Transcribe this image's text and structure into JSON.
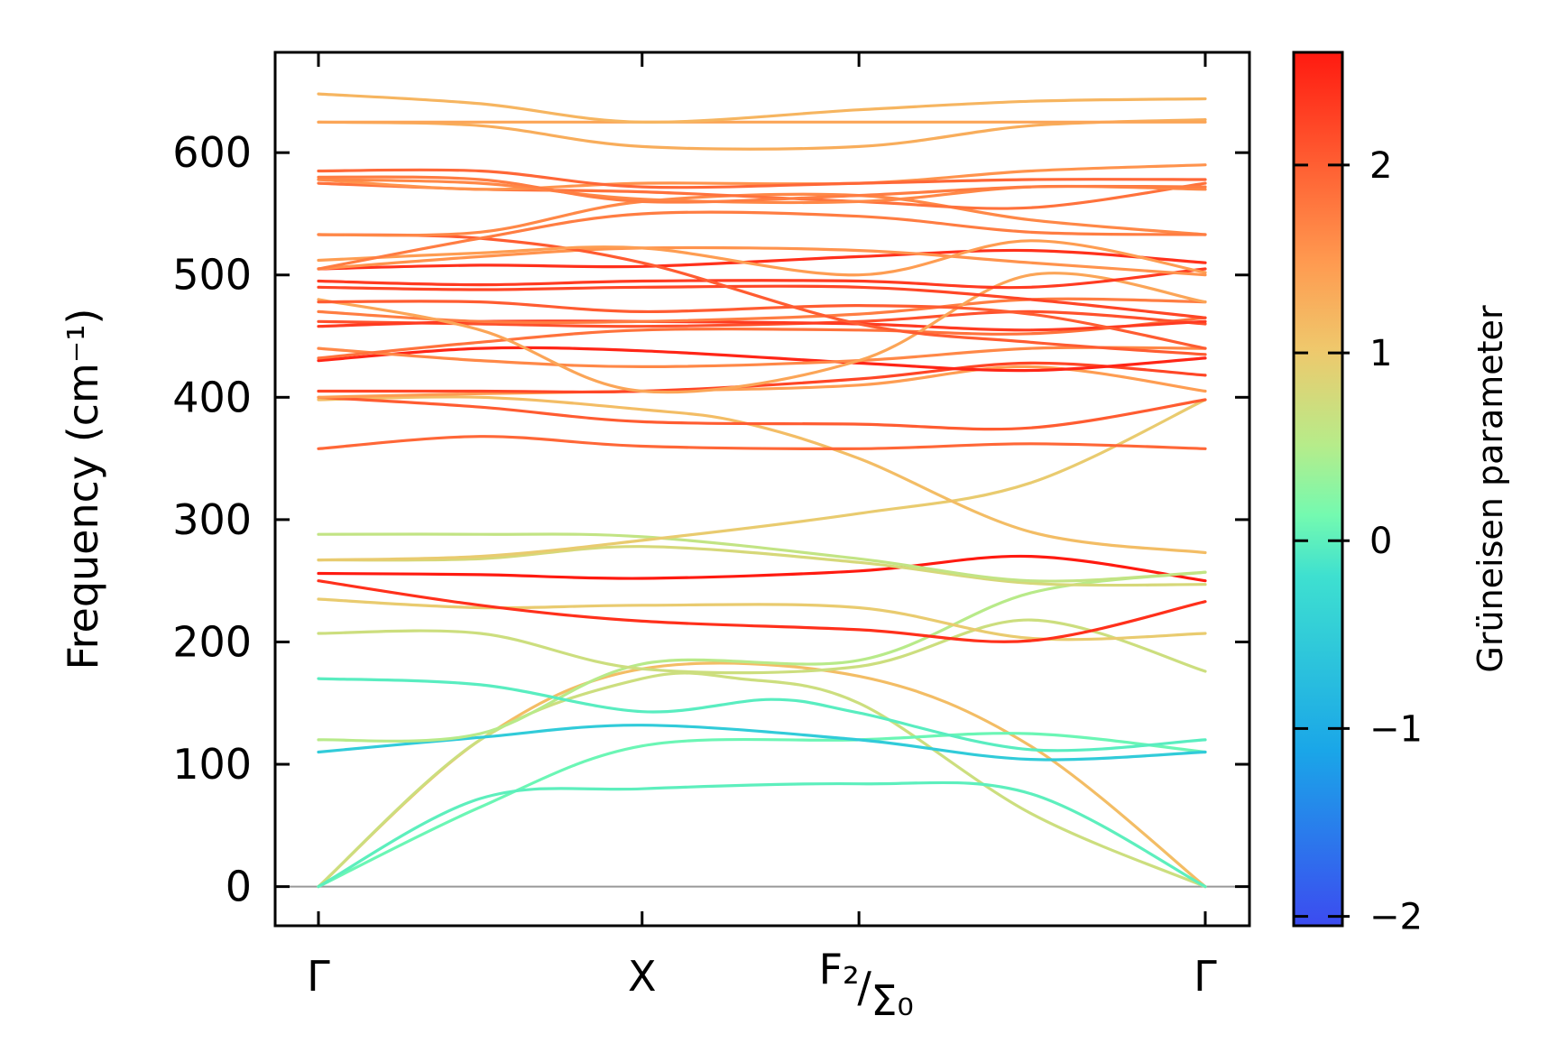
{
  "chart_data": {
    "type": "line",
    "title": "",
    "xlabel": "",
    "ylabel": "Frequency (cm⁻¹)",
    "ylim": [
      -32,
      682
    ],
    "yticks": [
      0,
      100,
      200,
      300,
      400,
      500,
      600
    ],
    "x_points": [
      0,
      1,
      1.67,
      2.74
    ],
    "x_labels": [
      {
        "main": "Γ",
        "sup": "",
        "sub": ""
      },
      {
        "main": "X",
        "sup": "",
        "sub": ""
      },
      {
        "main": "/",
        "sup": "F₂",
        "sub": "Σ₀"
      },
      {
        "main": "Γ",
        "sup": "",
        "sub": ""
      }
    ],
    "colorbar": {
      "label": "Grüneisen parameter",
      "range": [
        -2.05,
        2.6
      ],
      "ticks": [
        -2,
        -1,
        0,
        1,
        2
      ],
      "tick_labels": [
        "−2",
        "−1",
        "0",
        "1",
        "2"
      ],
      "colormap": [
        "#3c4bf0",
        "#1aa6e8",
        "#3ee0d0",
        "#74fab0",
        "#b6ec8a",
        "#efc86c",
        "#ff9a50",
        "#ff5a30",
        "#ff1a10"
      ]
    },
    "zero_line": 0,
    "series": [
      {
        "g": 1.0,
        "x": [
          0,
          0.5,
          1,
          1.67,
          2.2,
          2.74
        ],
        "y": [
          0,
          120,
          178,
          172,
          115,
          0
        ]
      },
      {
        "g": 0.5,
        "x": [
          0,
          0.5,
          1,
          1.3,
          1.67,
          2.2,
          2.74
        ],
        "y": [
          0,
          120,
          170,
          170,
          150,
          60,
          0
        ]
      },
      {
        "g": -0.4,
        "x": [
          0,
          0.5,
          1,
          1.67,
          2.2,
          2.74
        ],
        "y": [
          0,
          65,
          115,
          120,
          125,
          110
        ]
      },
      {
        "g": -0.55,
        "x": [
          0,
          0.5,
          1,
          1.67,
          2.2,
          2.74
        ],
        "y": [
          0,
          72,
          80,
          84,
          76,
          0
        ]
      },
      {
        "g": -1.1,
        "x": [
          0,
          0.5,
          1,
          1.67,
          2.2,
          2.74
        ],
        "y": [
          110,
          122,
          132,
          120,
          104,
          110
        ]
      },
      {
        "g": 0.3,
        "x": [
          0,
          0.5,
          1,
          1.67,
          2.2,
          2.74
        ],
        "y": [
          120,
          125,
          182,
          185,
          240,
          257
        ]
      },
      {
        "g": -0.6,
        "x": [
          0,
          0.5,
          1,
          1.4,
          1.67,
          2.2,
          2.74
        ],
        "y": [
          170,
          165,
          143,
          153,
          142,
          112,
          120
        ]
      },
      {
        "g": 0.5,
        "x": [
          0,
          0.5,
          1,
          1.67,
          2.2,
          2.74
        ],
        "y": [
          207,
          207,
          178,
          180,
          218,
          176
        ]
      },
      {
        "g": 0.8,
        "x": [
          0,
          0.5,
          1,
          1.67,
          2.2,
          2.74
        ],
        "y": [
          235,
          228,
          230,
          228,
          203,
          207
        ]
      },
      {
        "g": 2.4,
        "x": [
          0,
          0.5,
          1,
          1.67,
          2.2,
          2.74
        ],
        "y": [
          250,
          230,
          217,
          210,
          201,
          233
        ]
      },
      {
        "g": 2.6,
        "x": [
          0,
          0.5,
          1,
          1.67,
          2.2,
          2.74
        ],
        "y": [
          256,
          255,
          252,
          258,
          270,
          250
        ]
      },
      {
        "g": 0.6,
        "x": [
          0,
          0.5,
          1,
          1.67,
          2.2,
          2.74
        ],
        "y": [
          267,
          268,
          278,
          265,
          248,
          247
        ]
      },
      {
        "g": 0.4,
        "x": [
          0,
          0.5,
          1,
          1.67,
          2.2,
          2.74
        ],
        "y": [
          288,
          288,
          286,
          268,
          250,
          257
        ]
      },
      {
        "g": 0.8,
        "x": [
          0,
          0.5,
          1,
          1.67,
          2.2,
          2.74
        ],
        "y": [
          267,
          270,
          283,
          305,
          330,
          398
        ]
      },
      {
        "g": 1.0,
        "x": [
          0,
          0.5,
          1,
          1.3,
          1.67,
          2.2,
          2.74
        ],
        "y": [
          398,
          400,
          390,
          380,
          350,
          290,
          273
        ]
      },
      {
        "g": 1.9,
        "x": [
          0,
          0.5,
          1,
          1.67,
          2.2,
          2.74
        ],
        "y": [
          358,
          368,
          360,
          358,
          362,
          358
        ]
      },
      {
        "g": 2.0,
        "x": [
          0,
          0.5,
          1,
          1.67,
          2.2,
          2.74
        ],
        "y": [
          400,
          392,
          380,
          378,
          375,
          398
        ]
      },
      {
        "g": 1.4,
        "x": [
          0,
          0.5,
          1,
          1.67,
          2.2,
          2.74
        ],
        "y": [
          400,
          403,
          405,
          410,
          425,
          405
        ]
      },
      {
        "g": 2.2,
        "x": [
          0,
          0.5,
          1,
          1.67,
          2.2,
          2.74
        ],
        "y": [
          405,
          405,
          405,
          415,
          428,
          418
        ]
      },
      {
        "g": 2.5,
        "x": [
          0,
          0.5,
          1,
          1.67,
          2.2,
          2.74
        ],
        "y": [
          430,
          440,
          438,
          428,
          422,
          432
        ]
      },
      {
        "g": 1.6,
        "x": [
          0,
          0.5,
          1,
          1.67,
          2.2,
          2.74
        ],
        "y": [
          440,
          430,
          425,
          430,
          440,
          440
        ]
      },
      {
        "g": 1.8,
        "x": [
          0,
          0.5,
          1,
          1.67,
          2.2,
          2.74
        ],
        "y": [
          432,
          445,
          455,
          455,
          452,
          465
        ]
      },
      {
        "g": 2.1,
        "x": [
          0,
          0.5,
          1,
          1.67,
          2.2,
          2.74
        ],
        "y": [
          462,
          460,
          458,
          462,
          470,
          460
        ]
      },
      {
        "g": 2.3,
        "x": [
          0,
          0.5,
          1,
          1.67,
          2.2,
          2.74
        ],
        "y": [
          458,
          462,
          462,
          460,
          455,
          462
        ]
      },
      {
        "g": 1.7,
        "x": [
          0,
          0.5,
          1,
          1.67,
          2.2,
          2.74
        ],
        "y": [
          470,
          462,
          462,
          468,
          480,
          478
        ]
      },
      {
        "g": 1.3,
        "x": [
          0,
          0.5,
          1,
          1.67,
          2.2,
          2.74
        ],
        "y": [
          480,
          455,
          405,
          430,
          500,
          478
        ]
      },
      {
        "g": 2.0,
        "x": [
          0,
          0.5,
          1,
          1.67,
          2.2,
          2.74
        ],
        "y": [
          478,
          478,
          470,
          475,
          468,
          440
        ]
      },
      {
        "g": 2.2,
        "x": [
          0,
          0.5,
          1,
          1.67,
          2.2,
          2.74
        ],
        "y": [
          490,
          488,
          490,
          490,
          480,
          465
        ]
      },
      {
        "g": 2.3,
        "x": [
          0,
          0.5,
          1,
          1.67,
          2.2,
          2.74
        ],
        "y": [
          495,
          492,
          495,
          495,
          490,
          505
        ]
      },
      {
        "g": 2.4,
        "x": [
          0,
          0.5,
          1,
          1.67,
          2.2,
          2.74
        ],
        "y": [
          505,
          508,
          507,
          515,
          520,
          510
        ]
      },
      {
        "g": 1.5,
        "x": [
          0,
          0.5,
          1,
          1.67,
          2.2,
          2.74
        ],
        "y": [
          505,
          515,
          522,
          520,
          510,
          500
        ]
      },
      {
        "g": 2.0,
        "x": [
          0,
          0.5,
          1,
          1.67,
          2.2,
          2.74
        ],
        "y": [
          533,
          530,
          510,
          460,
          445,
          435
        ]
      },
      {
        "g": 1.4,
        "x": [
          0,
          0.5,
          1,
          1.67,
          2.2,
          2.74
        ],
        "y": [
          512,
          518,
          522,
          500,
          528,
          502
        ]
      },
      {
        "g": 1.6,
        "x": [
          0,
          0.5,
          1,
          1.67,
          2.2,
          2.74
        ],
        "y": [
          533,
          535,
          560,
          565,
          545,
          533
        ]
      },
      {
        "g": 1.7,
        "x": [
          0,
          0.5,
          1,
          1.67,
          2.2,
          2.74
        ],
        "y": [
          505,
          530,
          550,
          548,
          535,
          533
        ]
      },
      {
        "g": 1.8,
        "x": [
          0,
          0.5,
          1,
          1.67,
          2.2,
          2.74
        ],
        "y": [
          575,
          570,
          568,
          560,
          555,
          575
        ]
      },
      {
        "g": 1.5,
        "x": [
          0,
          0.5,
          1,
          1.67,
          2.2,
          2.74
        ],
        "y": [
          578,
          570,
          575,
          575,
          585,
          590
        ]
      },
      {
        "g": 1.9,
        "x": [
          0,
          0.5,
          1,
          1.67,
          2.2,
          2.74
        ],
        "y": [
          585,
          585,
          572,
          575,
          578,
          578
        ]
      },
      {
        "g": 1.6,
        "x": [
          0,
          0.5,
          1,
          1.67,
          2.2,
          2.74
        ],
        "y": [
          578,
          575,
          562,
          560,
          572,
          570
        ]
      },
      {
        "g": 1.7,
        "x": [
          0,
          0.5,
          1,
          1.67,
          2.2,
          2.74
        ],
        "y": [
          580,
          578,
          560,
          565,
          572,
          572
        ]
      },
      {
        "g": 1.2,
        "x": [
          0,
          0.5,
          1,
          1.67,
          2.2,
          2.74
        ],
        "y": [
          625,
          622,
          605,
          605,
          622,
          627
        ]
      },
      {
        "g": 1.3,
        "x": [
          0,
          0.5,
          1,
          1.67,
          2.2,
          2.74
        ],
        "y": [
          625,
          625,
          625,
          625,
          625,
          625
        ]
      },
      {
        "g": 1.1,
        "x": [
          0,
          0.5,
          1,
          1.67,
          2.2,
          2.74
        ],
        "y": [
          648,
          640,
          625,
          635,
          642,
          644
        ]
      }
    ]
  }
}
